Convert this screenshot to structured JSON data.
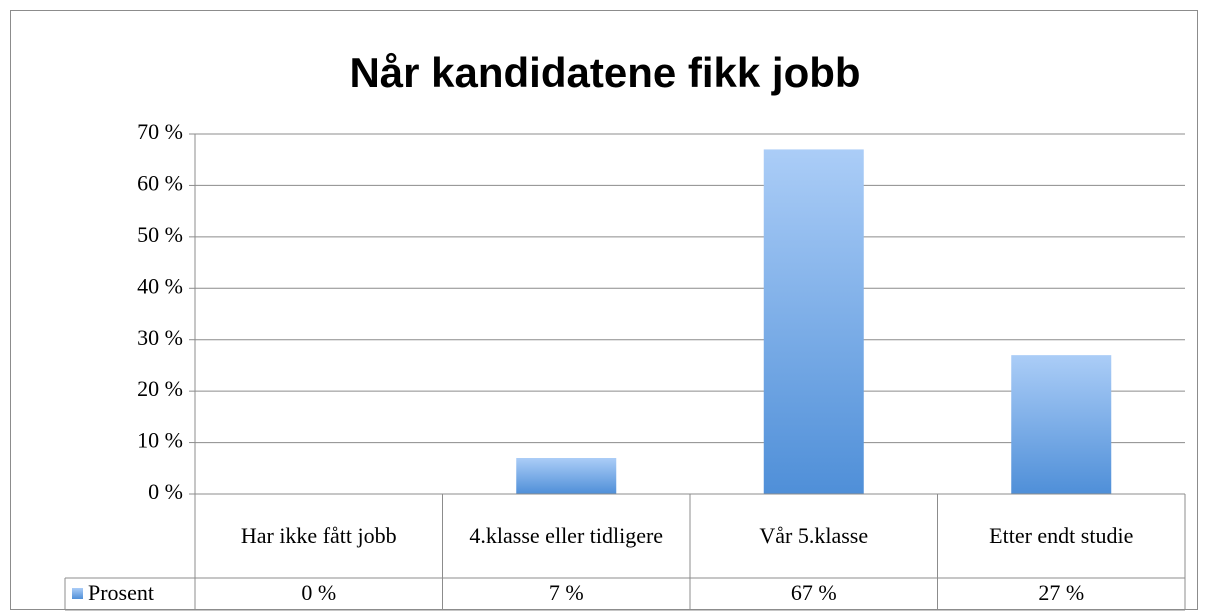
{
  "chart_data": {
    "type": "bar",
    "title": "Når kandidatene fikk jobb",
    "categories": [
      "Har ikke fått jobb",
      "4.klasse eller tidligere",
      "Vår 5.klasse",
      "Etter endt studie"
    ],
    "series": [
      {
        "name": "Prosent",
        "color": "#4f8fd8",
        "values": [
          0,
          7,
          67,
          27
        ],
        "value_labels": [
          "0 %",
          "7 %",
          "67 %",
          "27 %"
        ]
      }
    ],
    "ylim": [
      0,
      70
    ],
    "yticks": [
      {
        "value": 0,
        "label": "0 %"
      },
      {
        "value": 10,
        "label": "10 %"
      },
      {
        "value": 20,
        "label": "20 %"
      },
      {
        "value": 30,
        "label": "30 %"
      },
      {
        "value": 40,
        "label": "40 %"
      },
      {
        "value": 50,
        "label": "50 %"
      },
      {
        "value": 60,
        "label": "60 %"
      },
      {
        "value": 70,
        "label": "70 %"
      }
    ],
    "grid": true
  }
}
